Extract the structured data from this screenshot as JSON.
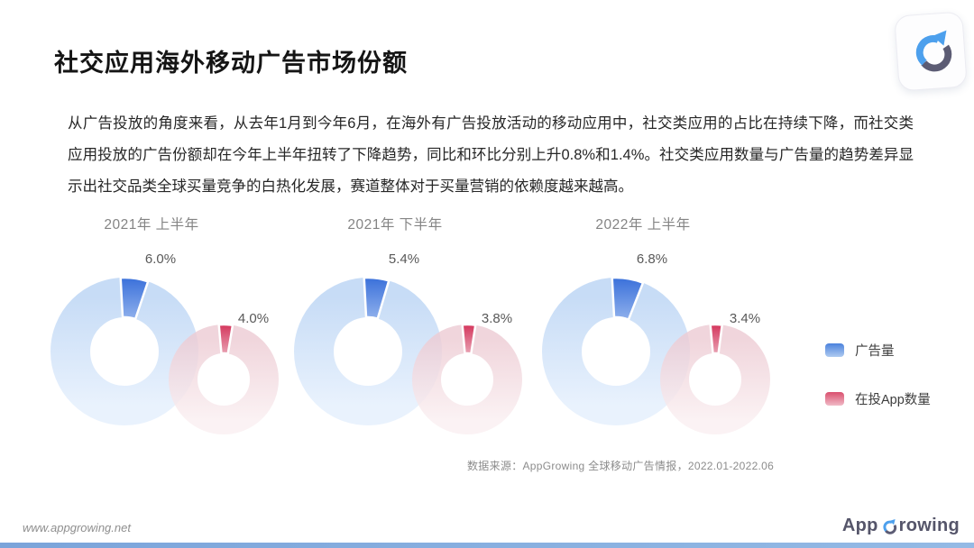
{
  "header": {
    "title": "社交应用海外移动广告市场份额"
  },
  "intro": {
    "text": "从广告投放的角度来看，从去年1月到今年6月，在海外有广告投放活动的移动应用中，社交类应用的占比在持续下降，而社交类应用投放的广告份额却在今年上半年扭转了下降趋势，同比和环比分别上升0.8%和1.4%。社交类应用数量与广告量的趋势差异显示出社交品类全球买量竞争的白热化发展，赛道整体对于买量营销的依赖度越来越高。"
  },
  "chart_data": {
    "type": "pie",
    "variant": "paired-donut-charts",
    "title": "社交应用海外移动广告市场份额",
    "groups": [
      {
        "title": "2021年 上半年",
        "ads_pct": 6.0,
        "ads_label": "6.0%",
        "apps_pct": 4.0,
        "apps_label": "4.0%"
      },
      {
        "title": "2021年 下半年",
        "ads_pct": 5.4,
        "ads_label": "5.4%",
        "apps_pct": 3.8,
        "apps_label": "3.8%"
      },
      {
        "title": "2022年 上半年",
        "ads_pct": 6.8,
        "ads_label": "6.8%",
        "apps_pct": 3.4,
        "apps_label": "3.4%"
      }
    ],
    "legend": [
      {
        "label": "广告量",
        "color": "#4b82dd"
      },
      {
        "label": "在投App数量",
        "color": "#d94f6e"
      }
    ],
    "legend_position": "right",
    "source": "数据来源：AppGrowing 全球移动广告情报，2022.01-2022.06",
    "colors": {
      "ads_slice_top": "#3a70da",
      "ads_slice_bottom": "#8fb0ec",
      "ads_body_top": "#c7dcf6",
      "ads_body_bottom": "#e9f2fd",
      "apps_slice_top": "#d4355c",
      "apps_slice_bottom": "#e8a2b3",
      "apps_body_top": "#edccd4",
      "apps_body_bottom": "#faeff1"
    }
  },
  "footer": {
    "url": "www.appgrowing.net",
    "logo_app": "App",
    "logo_rowing": "rowing"
  }
}
